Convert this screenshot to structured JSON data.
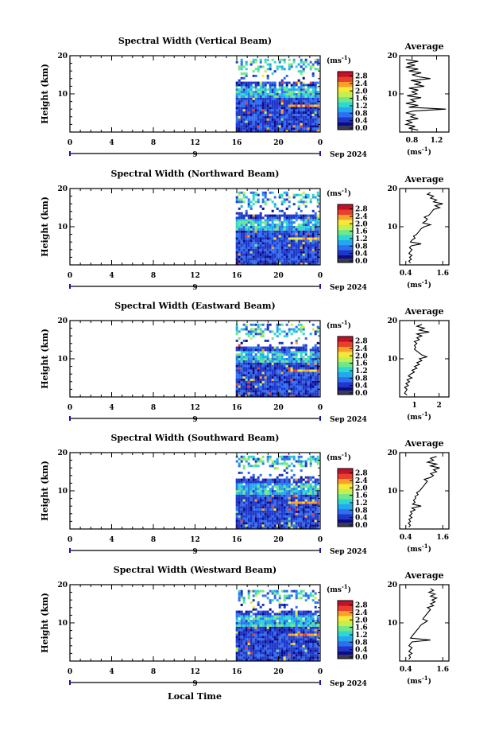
{
  "figure": {
    "xlabel": "Local Time",
    "date_label": "Sep 2024",
    "day_label": "9",
    "cbar_unit_base": "(ms",
    "cbar_unit_exp": "-1",
    "cbar_unit_close": ")",
    "avg_title": "Average",
    "avg_unit_base": "(ms",
    "avg_unit_exp": "-1",
    "avg_unit_close": ")"
  },
  "colors": {
    "colormap": [
      "#0b0b8a",
      "#1f36c8",
      "#2e6ef0",
      "#22a8ef",
      "#2fd7d0",
      "#6fe78a",
      "#c5ef4c",
      "#f5e83a",
      "#f7a12a",
      "#e8402a",
      "#c4102a"
    ],
    "cbar_bottom": "#3a3a55",
    "axis": "#000000"
  },
  "chart_data": [
    {
      "type": "heatmap",
      "title": "Spectral Width (Vertical Beam)",
      "ylabel": "Height (km)",
      "x_ticks": [
        "0",
        "4",
        "8",
        "12",
        "16",
        "20",
        "0"
      ],
      "y_ticks": [
        "10",
        "20"
      ],
      "xlim": [
        0,
        24
      ],
      "ylim": [
        0,
        20
      ],
      "data_start_hour": 15.9,
      "data_top_km": 19.0,
      "colorbar_ticks": [
        "0.0",
        "0.4",
        "0.8",
        "1.2",
        "1.6",
        "2.0",
        "2.4",
        "2.8"
      ],
      "colorbar_range": [
        0,
        3
      ],
      "avg_x_ticks": [
        "0.8",
        "1.2"
      ],
      "avg_xlim": [
        0.6,
        1.4
      ],
      "avg_profile": [
        [
          0.5,
          0.9
        ],
        [
          1,
          0.75
        ],
        [
          1.5,
          0.85
        ],
        [
          2,
          0.7
        ],
        [
          2.5,
          0.8
        ],
        [
          3,
          0.72
        ],
        [
          3.5,
          0.9
        ],
        [
          4,
          0.78
        ],
        [
          4.5,
          0.85
        ],
        [
          5,
          0.7
        ],
        [
          5.5,
          0.82
        ],
        [
          6,
          1.35
        ],
        [
          6.5,
          0.75
        ],
        [
          7,
          0.9
        ],
        [
          7.5,
          0.7
        ],
        [
          8,
          0.85
        ],
        [
          8.5,
          0.78
        ],
        [
          9,
          0.95
        ],
        [
          9.5,
          0.72
        ],
        [
          10,
          0.88
        ],
        [
          10.5,
          0.8
        ],
        [
          11,
          0.9
        ],
        [
          11.5,
          0.75
        ],
        [
          12,
          1.0
        ],
        [
          12.5,
          0.85
        ],
        [
          13,
          0.95
        ],
        [
          13.5,
          0.78
        ],
        [
          14,
          1.1
        ],
        [
          14.5,
          0.9
        ],
        [
          15,
          0.8
        ],
        [
          15.5,
          0.95
        ],
        [
          16,
          0.75
        ],
        [
          16.5,
          0.9
        ],
        [
          17,
          0.7
        ],
        [
          17.5,
          0.85
        ],
        [
          18,
          0.72
        ],
        [
          18.5,
          0.9
        ],
        [
          19,
          0.7
        ]
      ]
    },
    {
      "type": "heatmap",
      "title": "Spectral Width (Northward Beam)",
      "ylabel": "Height (km)",
      "x_ticks": [
        "0",
        "4",
        "8",
        "12",
        "16",
        "20",
        "0"
      ],
      "y_ticks": [
        "10",
        "20"
      ],
      "xlim": [
        0,
        24
      ],
      "ylim": [
        0,
        20
      ],
      "data_start_hour": 15.9,
      "data_top_km": 19.2,
      "colorbar_ticks": [
        "0.0",
        "0.4",
        "0.8",
        "1.2",
        "1.6",
        "2.0",
        "2.4",
        "2.8"
      ],
      "colorbar_range": [
        0,
        3
      ],
      "avg_x_ticks": [
        "0.4",
        "1.6"
      ],
      "avg_xlim": [
        0.2,
        1.8
      ],
      "avg_profile": [
        [
          0.5,
          0.55
        ],
        [
          1,
          0.5
        ],
        [
          1.5,
          0.58
        ],
        [
          2,
          0.52
        ],
        [
          2.5,
          0.6
        ],
        [
          3,
          0.5
        ],
        [
          3.5,
          0.55
        ],
        [
          4,
          0.6
        ],
        [
          4.5,
          0.52
        ],
        [
          5,
          0.58
        ],
        [
          5.5,
          0.9
        ],
        [
          6,
          0.55
        ],
        [
          6.5,
          0.6
        ],
        [
          7,
          0.7
        ],
        [
          7.5,
          0.65
        ],
        [
          8,
          0.75
        ],
        [
          8.5,
          0.8
        ],
        [
          9,
          0.85
        ],
        [
          9.5,
          0.9
        ],
        [
          10,
          1.0
        ],
        [
          10.5,
          1.2
        ],
        [
          11,
          0.95
        ],
        [
          11.5,
          1.05
        ],
        [
          12,
          1.1
        ],
        [
          12.5,
          1.0
        ],
        [
          13,
          1.15
        ],
        [
          13.5,
          1.2
        ],
        [
          14,
          1.25
        ],
        [
          14.5,
          1.3
        ],
        [
          15,
          1.5
        ],
        [
          15.5,
          1.35
        ],
        [
          16,
          1.6
        ],
        [
          16.5,
          1.3
        ],
        [
          17,
          1.4
        ],
        [
          17.5,
          1.2
        ],
        [
          18,
          1.3
        ],
        [
          18.5,
          1.1
        ],
        [
          19,
          1.2
        ]
      ]
    },
    {
      "type": "heatmap",
      "title": "Spectral Width (Eastward Beam)",
      "ylabel": "Height (km)",
      "x_ticks": [
        "0",
        "4",
        "8",
        "12",
        "16",
        "20",
        "0"
      ],
      "y_ticks": [
        "10",
        "20"
      ],
      "xlim": [
        0,
        24
      ],
      "ylim": [
        0,
        20
      ],
      "data_start_hour": 15.9,
      "data_top_km": 19.0,
      "colorbar_ticks": [
        "0.0",
        "0.4",
        "0.8",
        "1.2",
        "1.6",
        "2.0",
        "2.4",
        "2.8"
      ],
      "colorbar_range": [
        0,
        3
      ],
      "avg_x_ticks": [
        "1",
        "2"
      ],
      "avg_xlim": [
        0.4,
        2.4
      ],
      "avg_profile": [
        [
          0.5,
          0.7
        ],
        [
          1,
          0.6
        ],
        [
          1.5,
          0.65
        ],
        [
          2,
          0.7
        ],
        [
          2.5,
          0.6
        ],
        [
          3,
          0.75
        ],
        [
          3.5,
          0.65
        ],
        [
          4,
          0.8
        ],
        [
          4.5,
          0.7
        ],
        [
          5,
          0.9
        ],
        [
          5.5,
          0.75
        ],
        [
          6,
          0.85
        ],
        [
          6.5,
          1.0
        ],
        [
          7,
          0.9
        ],
        [
          7.5,
          1.1
        ],
        [
          8,
          1.0
        ],
        [
          8.5,
          1.2
        ],
        [
          9,
          1.1
        ],
        [
          9.5,
          1.3
        ],
        [
          10,
          1.2
        ],
        [
          10.5,
          1.5
        ],
        [
          11,
          1.3
        ],
        [
          11.5,
          1.2
        ],
        [
          12,
          1.1
        ],
        [
          12.5,
          1.0
        ],
        [
          13,
          1.05
        ],
        [
          13.5,
          1.0
        ],
        [
          14,
          1.1
        ],
        [
          14.5,
          1.0
        ],
        [
          15,
          1.2
        ],
        [
          15.5,
          1.1
        ],
        [
          16,
          1.3
        ],
        [
          16.5,
          1.1
        ],
        [
          17,
          1.6
        ],
        [
          17.5,
          1.2
        ],
        [
          18,
          1.4
        ],
        [
          18.5,
          1.1
        ],
        [
          19,
          1.3
        ]
      ]
    },
    {
      "type": "heatmap",
      "title": "Spectral Width (Southward Beam)",
      "ylabel": "Height (km)",
      "x_ticks": [
        "0",
        "4",
        "8",
        "12",
        "16",
        "20",
        "0"
      ],
      "y_ticks": [
        "10",
        "20"
      ],
      "xlim": [
        0,
        24
      ],
      "ylim": [
        0,
        20
      ],
      "data_start_hour": 15.9,
      "data_top_km": 19.0,
      "colorbar_ticks": [
        "0.0",
        "0.4",
        "0.8",
        "1.2",
        "1.6",
        "2.0",
        "2.4",
        "2.8"
      ],
      "colorbar_range": [
        0,
        3
      ],
      "avg_x_ticks": [
        "0.4",
        "1.6"
      ],
      "avg_xlim": [
        0.2,
        1.8
      ],
      "avg_profile": [
        [
          0.5,
          0.5
        ],
        [
          1,
          0.55
        ],
        [
          1.5,
          0.48
        ],
        [
          2,
          0.55
        ],
        [
          2.5,
          0.5
        ],
        [
          3,
          0.6
        ],
        [
          3.5,
          0.52
        ],
        [
          4,
          0.6
        ],
        [
          4.5,
          0.55
        ],
        [
          5,
          0.7
        ],
        [
          5.5,
          0.6
        ],
        [
          6,
          0.9
        ],
        [
          6.5,
          0.62
        ],
        [
          7,
          0.7
        ],
        [
          7.5,
          0.65
        ],
        [
          8,
          0.72
        ],
        [
          8.5,
          0.7
        ],
        [
          9,
          0.8
        ],
        [
          9.5,
          0.75
        ],
        [
          10,
          0.85
        ],
        [
          10.5,
          0.9
        ],
        [
          11,
          0.95
        ],
        [
          11.5,
          1.0
        ],
        [
          12,
          1.05
        ],
        [
          12.5,
          1.1
        ],
        [
          13,
          1.0
        ],
        [
          13.5,
          1.2
        ],
        [
          14,
          1.3
        ],
        [
          14.5,
          1.2
        ],
        [
          15,
          1.4
        ],
        [
          15.5,
          1.3
        ],
        [
          16,
          1.5
        ],
        [
          16.5,
          1.2
        ],
        [
          17,
          1.4
        ],
        [
          17.5,
          1.1
        ],
        [
          18,
          1.3
        ],
        [
          18.5,
          1.2
        ],
        [
          19,
          1.4
        ]
      ]
    },
    {
      "type": "heatmap",
      "title": "Spectral Width (Westward Beam)",
      "ylabel": "Height (km)",
      "x_ticks": [
        "0",
        "4",
        "8",
        "12",
        "16",
        "20",
        "0"
      ],
      "y_ticks": [
        "10",
        "20"
      ],
      "xlim": [
        0,
        24
      ],
      "ylim": [
        0,
        20
      ],
      "data_start_hour": 15.9,
      "data_top_km": 18.8,
      "colorbar_ticks": [
        "0.0",
        "0.4",
        "0.8",
        "1.2",
        "1.6",
        "2.0",
        "2.4",
        "2.8"
      ],
      "colorbar_range": [
        0,
        3
      ],
      "avg_x_ticks": [
        "0.4",
        "1.6"
      ],
      "avg_xlim": [
        0.2,
        1.8
      ],
      "avg_profile": [
        [
          0.5,
          0.5
        ],
        [
          1,
          0.55
        ],
        [
          1.5,
          0.5
        ],
        [
          2,
          0.6
        ],
        [
          2.5,
          0.5
        ],
        [
          3,
          0.55
        ],
        [
          3.5,
          0.6
        ],
        [
          4,
          0.5
        ],
        [
          4.5,
          0.55
        ],
        [
          5,
          0.6
        ],
        [
          5.5,
          1.2
        ],
        [
          6,
          0.55
        ],
        [
          6.5,
          0.6
        ],
        [
          7,
          0.65
        ],
        [
          7.5,
          0.7
        ],
        [
          8,
          0.75
        ],
        [
          8.5,
          0.8
        ],
        [
          9,
          0.85
        ],
        [
          9.5,
          0.9
        ],
        [
          10,
          1.0
        ],
        [
          10.5,
          1.1
        ],
        [
          11,
          0.95
        ],
        [
          11.5,
          1.0
        ],
        [
          12,
          1.05
        ],
        [
          12.5,
          1.1
        ],
        [
          13,
          1.15
        ],
        [
          13.5,
          1.2
        ],
        [
          14,
          1.1
        ],
        [
          14.5,
          1.3
        ],
        [
          15,
          1.2
        ],
        [
          15.5,
          1.35
        ],
        [
          16,
          1.25
        ],
        [
          16.5,
          1.4
        ],
        [
          17,
          1.2
        ],
        [
          17.5,
          1.35
        ],
        [
          18,
          1.15
        ],
        [
          18.5,
          1.3
        ],
        [
          19,
          1.2
        ]
      ]
    }
  ]
}
